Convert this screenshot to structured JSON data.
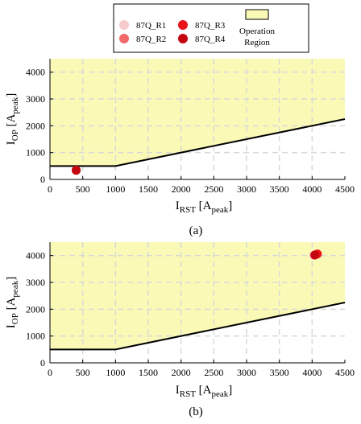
{
  "legend": {
    "items": [
      {
        "label": "87Q_R1",
        "color": "#f6c9cc"
      },
      {
        "label": "87Q_R2",
        "color": "#f26b6b"
      },
      {
        "label": "87Q_R3",
        "color": "#e8141a"
      },
      {
        "label": "87Q_R4",
        "color": "#c4060f"
      }
    ],
    "region_label_line1": "Operation",
    "region_label_line2": "Region",
    "region_color": "#fafab6"
  },
  "chart_data": [
    {
      "type": "scatter",
      "panel_label": "(a)",
      "xlim": [
        0,
        4500
      ],
      "ylim": [
        0,
        4500
      ],
      "xticks": [
        "0",
        "500",
        "1000",
        "1500",
        "2000",
        "2500",
        "3000",
        "3500",
        "4000",
        "4500"
      ],
      "yticks": [
        "0",
        "1000",
        "2000",
        "3000",
        "4000"
      ],
      "xlabel": {
        "main": "I",
        "sub1": "RST",
        "bracket_open": " [A",
        "sub2": "peak",
        "bracket_close": "]"
      },
      "ylabel": {
        "main": "I",
        "sub1": "OP",
        "bracket_open": " [A",
        "sub2": "peak",
        "bracket_close": "]"
      },
      "grid": true,
      "characteristic": [
        [
          0,
          500
        ],
        [
          1000,
          500
        ],
        [
          4500,
          2250
        ]
      ],
      "points": [
        {
          "series": "87Q_R1",
          "x": 400,
          "y": 340
        },
        {
          "series": "87Q_R2",
          "x": 400,
          "y": 340
        },
        {
          "series": "87Q_R3",
          "x": 400,
          "y": 340
        },
        {
          "series": "87Q_R4",
          "x": 400,
          "y": 340
        }
      ]
    },
    {
      "type": "scatter",
      "panel_label": "(b)",
      "xlim": [
        0,
        4500
      ],
      "ylim": [
        0,
        4500
      ],
      "xticks": [
        "0",
        "500",
        "1000",
        "1500",
        "2000",
        "2500",
        "3000",
        "3500",
        "4000",
        "4500"
      ],
      "yticks": [
        "0",
        "1000",
        "2000",
        "3000",
        "4000"
      ],
      "xlabel": {
        "main": "I",
        "sub1": "RST",
        "bracket_open": " [A",
        "sub2": "peak",
        "bracket_close": "]"
      },
      "ylabel": {
        "main": "I",
        "sub1": "OP",
        "bracket_open": " [A",
        "sub2": "peak",
        "bracket_close": "]"
      },
      "grid": true,
      "characteristic": [
        [
          0,
          500
        ],
        [
          1000,
          500
        ],
        [
          4500,
          2250
        ]
      ],
      "points": [
        {
          "series": "87Q_R1",
          "x": 4020,
          "y": 4010
        },
        {
          "series": "87Q_R2",
          "x": 4050,
          "y": 4030
        },
        {
          "series": "87Q_R3",
          "x": 4080,
          "y": 4060
        },
        {
          "series": "87Q_R4",
          "x": 4040,
          "y": 4020
        }
      ]
    }
  ]
}
